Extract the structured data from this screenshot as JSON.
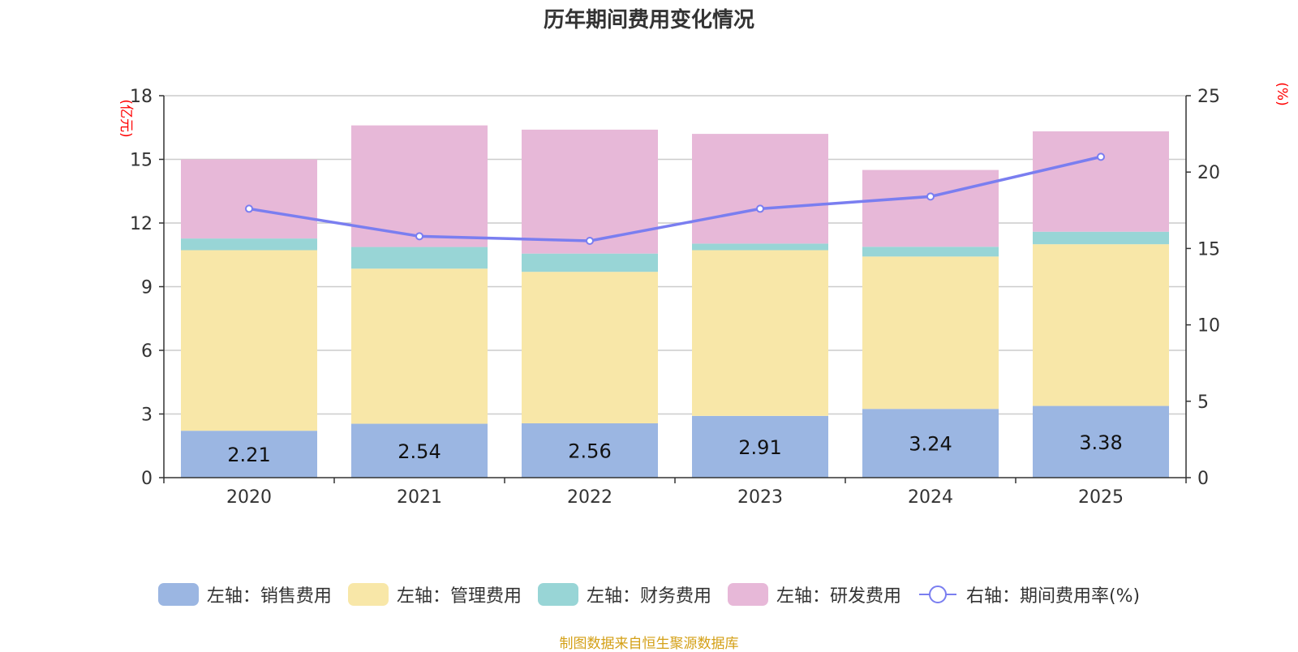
{
  "chart_data": {
    "type": "bar",
    "title": "历年期间费用变化情况",
    "categories": [
      "2020",
      "2021",
      "2022",
      "2023",
      "2024",
      "2025"
    ],
    "left_axis": {
      "unit": "(亿元)",
      "ylim": [
        0,
        18
      ],
      "ticks": [
        0,
        3,
        6,
        9,
        12,
        15,
        18
      ]
    },
    "right_axis": {
      "unit": "(%)",
      "ylim": [
        0,
        25
      ],
      "ticks": [
        0,
        5,
        10,
        15,
        20,
        25
      ]
    },
    "series": [
      {
        "name": "左轴：销售费用",
        "axis": "left",
        "color": "#9bb6e2",
        "values": [
          2.21,
          2.54,
          2.56,
          2.91,
          3.24,
          3.38
        ],
        "show_labels": true
      },
      {
        "name": "左轴：管理费用",
        "axis": "left",
        "color": "#f8e7a8",
        "values": [
          8.51,
          7.31,
          7.14,
          7.81,
          7.18,
          7.62
        ]
      },
      {
        "name": "左轴：财务费用",
        "axis": "left",
        "color": "#98d5d6",
        "values": [
          0.55,
          1.02,
          0.86,
          0.31,
          0.46,
          0.59
        ]
      },
      {
        "name": "左轴：研发费用",
        "axis": "left",
        "color": "#e7b8d8",
        "values": [
          3.73,
          5.73,
          5.84,
          5.17,
          3.62,
          4.73
        ]
      },
      {
        "name": "右轴：期间费用率(%)",
        "axis": "right",
        "type": "line",
        "color": "#7a7ef0",
        "values": [
          17.6,
          15.8,
          15.5,
          17.6,
          18.4,
          21.0
        ]
      }
    ],
    "grid": true,
    "legend_position": "bottom"
  },
  "source_note": "制图数据来自恒生聚源数据库"
}
